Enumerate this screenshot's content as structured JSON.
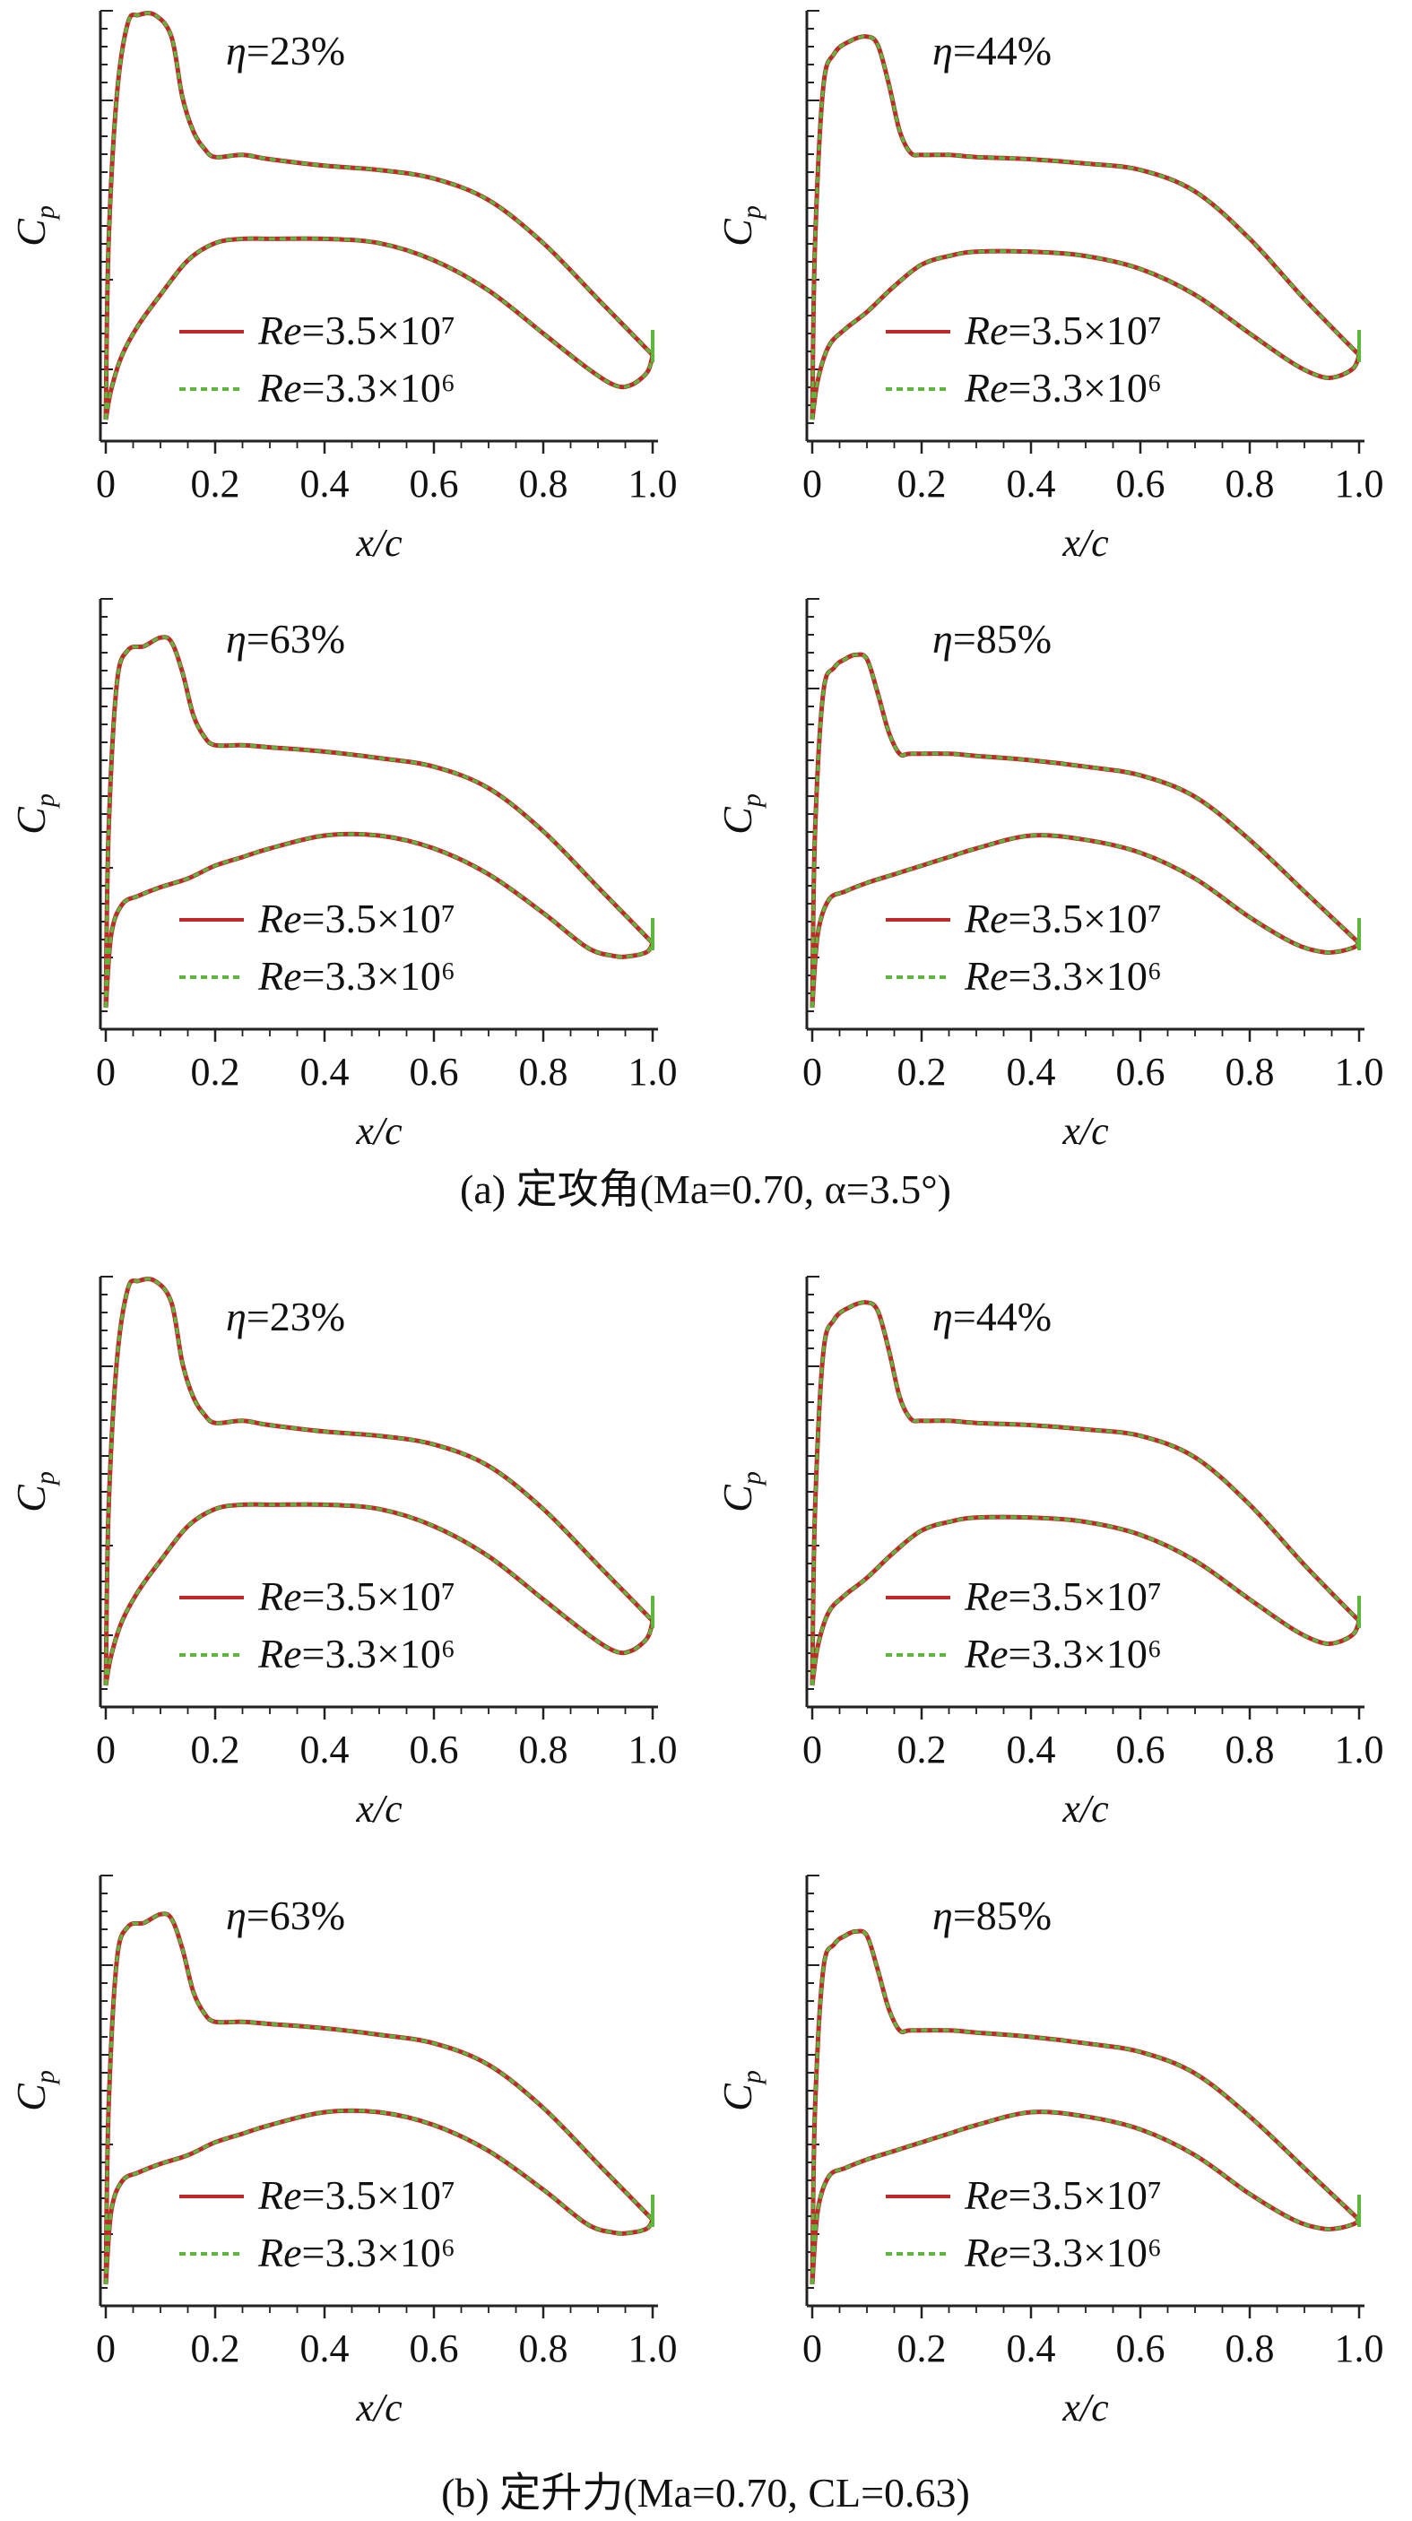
{
  "captions": {
    "a": "(a) 定攻角(Ma=0.70, α=3.5°)",
    "b": "(b) 定升力(Ma=0.70, CL=0.63)"
  },
  "colors": {
    "re_high": "#c0282a",
    "re_low": "#5cb83a",
    "axis": "#222222"
  },
  "chart_data": [
    {
      "type": "line",
      "panel": "a-1",
      "annotation": "η=23%",
      "xlabel": "x/c",
      "ylabel": "Cp",
      "xticks": [
        "0",
        "0.2",
        "0.4",
        "0.6",
        "0.8",
        "1.0"
      ],
      "xlim": [
        0,
        1.0
      ],
      "legend": [
        "Re=3.5×10⁷",
        "Re=3.3×10⁶"
      ],
      "upper": {
        "x": [
          0,
          0.005,
          0.02,
          0.04,
          0.06,
          0.09,
          0.12,
          0.14,
          0.16,
          0.18,
          0.2,
          0.25,
          0.3,
          0.4,
          0.5,
          0.6,
          0.7,
          0.8,
          0.9,
          1.0
        ],
        "y": [
          0.05,
          0.45,
          0.8,
          0.97,
          0.99,
          0.99,
          0.94,
          0.8,
          0.72,
          0.68,
          0.66,
          0.665,
          0.655,
          0.64,
          0.63,
          0.61,
          0.56,
          0.46,
          0.33,
          0.2
        ]
      },
      "lower": {
        "x": [
          0,
          0.01,
          0.03,
          0.06,
          0.1,
          0.15,
          0.2,
          0.25,
          0.3,
          0.4,
          0.5,
          0.6,
          0.7,
          0.8,
          0.88,
          0.93,
          0.96,
          0.99,
          1.0
        ],
        "y": [
          0.05,
          0.12,
          0.2,
          0.27,
          0.34,
          0.42,
          0.46,
          0.47,
          0.47,
          0.47,
          0.46,
          0.42,
          0.35,
          0.25,
          0.17,
          0.13,
          0.13,
          0.16,
          0.2
        ]
      }
    },
    {
      "type": "line",
      "panel": "a-2",
      "annotation": "η=44%",
      "xlabel": "x/c",
      "ylabel": "Cp",
      "xticks": [
        "0",
        "0.2",
        "0.4",
        "0.6",
        "0.8",
        "1.0"
      ],
      "xlim": [
        0,
        1.0
      ],
      "legend": [
        "Re=3.5×10⁷",
        "Re=3.3×10⁶"
      ],
      "upper": {
        "x": [
          0,
          0.005,
          0.02,
          0.04,
          0.07,
          0.1,
          0.12,
          0.14,
          0.16,
          0.18,
          0.2,
          0.25,
          0.3,
          0.4,
          0.5,
          0.6,
          0.7,
          0.8,
          0.9,
          1.0
        ],
        "y": [
          0.05,
          0.45,
          0.82,
          0.9,
          0.93,
          0.94,
          0.92,
          0.83,
          0.72,
          0.67,
          0.665,
          0.665,
          0.66,
          0.655,
          0.645,
          0.63,
          0.58,
          0.47,
          0.33,
          0.2
        ]
      },
      "lower": {
        "x": [
          0,
          0.01,
          0.03,
          0.06,
          0.1,
          0.15,
          0.2,
          0.25,
          0.3,
          0.4,
          0.5,
          0.6,
          0.7,
          0.8,
          0.88,
          0.93,
          0.96,
          0.99,
          1.0
        ],
        "y": [
          0.05,
          0.14,
          0.22,
          0.26,
          0.3,
          0.36,
          0.41,
          0.43,
          0.44,
          0.44,
          0.43,
          0.4,
          0.34,
          0.25,
          0.18,
          0.15,
          0.15,
          0.17,
          0.2
        ]
      }
    },
    {
      "type": "line",
      "panel": "a-3",
      "annotation": "η=63%",
      "xlabel": "x/c",
      "ylabel": "Cp",
      "xticks": [
        "0",
        "0.2",
        "0.4",
        "0.6",
        "0.8",
        "1.0"
      ],
      "xlim": [
        0,
        1.0
      ],
      "legend": [
        "Re=3.5×10⁷",
        "Re=3.3×10⁶"
      ],
      "upper": {
        "x": [
          0,
          0.005,
          0.02,
          0.04,
          0.07,
          0.1,
          0.12,
          0.14,
          0.16,
          0.18,
          0.2,
          0.25,
          0.3,
          0.4,
          0.5,
          0.6,
          0.7,
          0.8,
          0.9,
          1.0
        ],
        "y": [
          0.05,
          0.45,
          0.8,
          0.88,
          0.89,
          0.91,
          0.9,
          0.83,
          0.73,
          0.68,
          0.66,
          0.66,
          0.655,
          0.645,
          0.63,
          0.61,
          0.56,
          0.46,
          0.33,
          0.2
        ]
      },
      "lower": {
        "x": [
          0,
          0.01,
          0.03,
          0.06,
          0.1,
          0.15,
          0.2,
          0.25,
          0.3,
          0.4,
          0.5,
          0.6,
          0.7,
          0.8,
          0.88,
          0.93,
          0.96,
          0.99,
          1.0
        ],
        "y": [
          0.05,
          0.22,
          0.29,
          0.31,
          0.33,
          0.35,
          0.38,
          0.4,
          0.42,
          0.45,
          0.45,
          0.42,
          0.36,
          0.27,
          0.19,
          0.17,
          0.17,
          0.18,
          0.2
        ]
      }
    },
    {
      "type": "line",
      "panel": "a-4",
      "annotation": "η=85%",
      "xlabel": "x/c",
      "ylabel": "Cp",
      "xticks": [
        "0",
        "0.2",
        "0.4",
        "0.6",
        "0.8",
        "1.0"
      ],
      "xlim": [
        0,
        1.0
      ],
      "legend": [
        "Re=3.5×10⁷",
        "Re=3.3×10⁶"
      ],
      "upper": {
        "x": [
          0,
          0.005,
          0.02,
          0.04,
          0.06,
          0.08,
          0.1,
          0.12,
          0.14,
          0.16,
          0.18,
          0.25,
          0.3,
          0.4,
          0.5,
          0.6,
          0.7,
          0.8,
          0.9,
          1.0
        ],
        "y": [
          0.05,
          0.45,
          0.78,
          0.84,
          0.86,
          0.87,
          0.86,
          0.78,
          0.69,
          0.64,
          0.64,
          0.64,
          0.635,
          0.625,
          0.61,
          0.59,
          0.54,
          0.44,
          0.32,
          0.2
        ]
      },
      "lower": {
        "x": [
          0,
          0.01,
          0.03,
          0.06,
          0.1,
          0.15,
          0.2,
          0.25,
          0.3,
          0.4,
          0.5,
          0.6,
          0.7,
          0.8,
          0.88,
          0.93,
          0.96,
          0.99,
          1.0
        ],
        "y": [
          0.05,
          0.22,
          0.3,
          0.32,
          0.34,
          0.36,
          0.38,
          0.4,
          0.42,
          0.45,
          0.44,
          0.41,
          0.35,
          0.26,
          0.2,
          0.18,
          0.18,
          0.19,
          0.2
        ]
      }
    },
    {
      "type": "line",
      "panel": "b-1",
      "annotation": "η=23%",
      "xlabel": "x/c",
      "ylabel": "Cp",
      "xticks": [
        "0",
        "0.2",
        "0.4",
        "0.6",
        "0.8",
        "1.0"
      ],
      "xlim": [
        0,
        1.0
      ],
      "legend": [
        "Re=3.5×10⁷",
        "Re=3.3×10⁶"
      ],
      "upper": {
        "x": [
          0,
          0.005,
          0.02,
          0.04,
          0.06,
          0.09,
          0.12,
          0.14,
          0.16,
          0.18,
          0.2,
          0.25,
          0.3,
          0.4,
          0.5,
          0.6,
          0.7,
          0.8,
          0.9,
          1.0
        ],
        "y": [
          0.05,
          0.45,
          0.8,
          0.97,
          0.99,
          0.99,
          0.94,
          0.8,
          0.72,
          0.68,
          0.66,
          0.665,
          0.655,
          0.64,
          0.63,
          0.61,
          0.56,
          0.46,
          0.33,
          0.2
        ]
      },
      "lower": {
        "x": [
          0,
          0.01,
          0.03,
          0.06,
          0.1,
          0.15,
          0.2,
          0.25,
          0.3,
          0.4,
          0.5,
          0.6,
          0.7,
          0.8,
          0.88,
          0.93,
          0.96,
          0.99,
          1.0
        ],
        "y": [
          0.05,
          0.12,
          0.2,
          0.27,
          0.34,
          0.42,
          0.46,
          0.47,
          0.47,
          0.47,
          0.46,
          0.42,
          0.35,
          0.25,
          0.17,
          0.13,
          0.13,
          0.16,
          0.2
        ]
      }
    },
    {
      "type": "line",
      "panel": "b-2",
      "annotation": "η=44%",
      "xlabel": "x/c",
      "ylabel": "Cp",
      "xticks": [
        "0",
        "0.2",
        "0.4",
        "0.6",
        "0.8",
        "1.0"
      ],
      "xlim": [
        0,
        1.0
      ],
      "legend": [
        "Re=3.5×10⁷",
        "Re=3.3×10⁶"
      ],
      "upper": {
        "x": [
          0,
          0.005,
          0.02,
          0.04,
          0.07,
          0.1,
          0.12,
          0.14,
          0.16,
          0.18,
          0.2,
          0.25,
          0.3,
          0.4,
          0.5,
          0.6,
          0.7,
          0.8,
          0.9,
          1.0
        ],
        "y": [
          0.05,
          0.45,
          0.82,
          0.9,
          0.93,
          0.94,
          0.92,
          0.83,
          0.72,
          0.67,
          0.665,
          0.665,
          0.66,
          0.655,
          0.645,
          0.63,
          0.58,
          0.47,
          0.33,
          0.2
        ]
      },
      "lower": {
        "x": [
          0,
          0.01,
          0.03,
          0.06,
          0.1,
          0.15,
          0.2,
          0.25,
          0.3,
          0.4,
          0.5,
          0.6,
          0.7,
          0.8,
          0.88,
          0.93,
          0.96,
          0.99,
          1.0
        ],
        "y": [
          0.05,
          0.14,
          0.22,
          0.26,
          0.3,
          0.36,
          0.41,
          0.43,
          0.44,
          0.44,
          0.43,
          0.4,
          0.34,
          0.25,
          0.18,
          0.15,
          0.15,
          0.17,
          0.2
        ]
      }
    },
    {
      "type": "line",
      "panel": "b-3",
      "annotation": "η=63%",
      "xlabel": "x/c",
      "ylabel": "Cp",
      "xticks": [
        "0",
        "0.2",
        "0.4",
        "0.6",
        "0.8",
        "1.0"
      ],
      "xlim": [
        0,
        1.0
      ],
      "legend": [
        "Re=3.5×10⁷",
        "Re=3.3×10⁶"
      ],
      "upper": {
        "x": [
          0,
          0.005,
          0.02,
          0.04,
          0.07,
          0.1,
          0.12,
          0.14,
          0.16,
          0.18,
          0.2,
          0.25,
          0.3,
          0.4,
          0.5,
          0.6,
          0.7,
          0.8,
          0.9,
          1.0
        ],
        "y": [
          0.05,
          0.45,
          0.8,
          0.88,
          0.89,
          0.91,
          0.9,
          0.83,
          0.73,
          0.68,
          0.66,
          0.66,
          0.655,
          0.645,
          0.63,
          0.61,
          0.56,
          0.46,
          0.33,
          0.2
        ]
      },
      "lower": {
        "x": [
          0,
          0.01,
          0.03,
          0.06,
          0.1,
          0.15,
          0.2,
          0.25,
          0.3,
          0.4,
          0.5,
          0.6,
          0.7,
          0.8,
          0.88,
          0.93,
          0.96,
          0.99,
          1.0
        ],
        "y": [
          0.05,
          0.22,
          0.29,
          0.31,
          0.33,
          0.35,
          0.38,
          0.4,
          0.42,
          0.45,
          0.45,
          0.42,
          0.36,
          0.27,
          0.19,
          0.17,
          0.17,
          0.18,
          0.2
        ]
      }
    },
    {
      "type": "line",
      "panel": "b-4",
      "annotation": "η=85%",
      "xlabel": "x/c",
      "ylabel": "Cp",
      "xticks": [
        "0",
        "0.2",
        "0.4",
        "0.6",
        "0.8",
        "1.0"
      ],
      "xlim": [
        0,
        1.0
      ],
      "legend": [
        "Re=3.5×10⁷",
        "Re=3.3×10⁶"
      ],
      "upper": {
        "x": [
          0,
          0.005,
          0.02,
          0.04,
          0.06,
          0.08,
          0.1,
          0.12,
          0.14,
          0.16,
          0.18,
          0.25,
          0.3,
          0.4,
          0.5,
          0.6,
          0.7,
          0.8,
          0.9,
          1.0
        ],
        "y": [
          0.05,
          0.45,
          0.78,
          0.84,
          0.86,
          0.87,
          0.86,
          0.78,
          0.69,
          0.64,
          0.64,
          0.64,
          0.635,
          0.625,
          0.61,
          0.59,
          0.54,
          0.44,
          0.32,
          0.2
        ]
      },
      "lower": {
        "x": [
          0,
          0.01,
          0.03,
          0.06,
          0.1,
          0.15,
          0.2,
          0.25,
          0.3,
          0.4,
          0.5,
          0.6,
          0.7,
          0.8,
          0.88,
          0.93,
          0.96,
          0.99,
          1.0
        ],
        "y": [
          0.05,
          0.22,
          0.3,
          0.32,
          0.34,
          0.36,
          0.38,
          0.4,
          0.42,
          0.45,
          0.44,
          0.41,
          0.35,
          0.26,
          0.2,
          0.18,
          0.18,
          0.19,
          0.2
        ]
      }
    }
  ]
}
